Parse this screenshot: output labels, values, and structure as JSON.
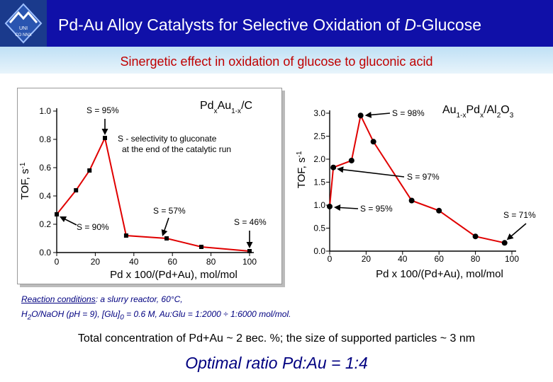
{
  "header": {
    "title": "Pd-Au Alloy Catalysts for Selective Oxidation of D-Glucose",
    "logo_text": [
      "UNI",
      "CO NNX"
    ],
    "colors": {
      "header_bg": "#1010a8",
      "subtitle": "#c00000",
      "series": "#e00000",
      "conditions": "#000080"
    }
  },
  "subtitle": "Sinergetic effect in oxidation of glucose to gluconic acid",
  "chart_data": [
    {
      "type": "line",
      "title": "PdxAu1-x/C",
      "xlabel": "Pd x 100/(Pd+Au), mol/mol",
      "ylabel": "TOF, s-1",
      "xlim": [
        0,
        100
      ],
      "ylim": [
        0,
        1.0
      ],
      "xticks": [
        "0",
        "20",
        "40",
        "60",
        "80",
        "100"
      ],
      "yticks": [
        "0.0",
        "0.2",
        "0.4",
        "0.6",
        "0.8",
        "1.0"
      ],
      "grid": false,
      "x": [
        0,
        10,
        17,
        25,
        36,
        57,
        75,
        100
      ],
      "y": [
        0.27,
        0.44,
        0.58,
        0.81,
        0.12,
        0.1,
        0.04,
        0.01
      ],
      "annotations": [
        "S = 95%",
        "S - selectivity to gluconate",
        "at the end of the catalytic run",
        "S = 90%",
        "S = 57%",
        "S = 46%"
      ]
    },
    {
      "type": "line",
      "title": "Au1-xPdx/Al2O3",
      "xlabel": "Pd x 100/(Pd+Au), mol/mol",
      "ylabel": "TOF, s-1",
      "xlim": [
        0,
        100
      ],
      "ylim": [
        0,
        3.0
      ],
      "xticks": [
        "0",
        "20",
        "40",
        "60",
        "80",
        "100"
      ],
      "yticks": [
        "0.0",
        "0.5",
        "1.0",
        "1.5",
        "2.0",
        "2.5",
        "3.0"
      ],
      "grid": false,
      "x": [
        0,
        2,
        12,
        17,
        24,
        45,
        60,
        80,
        96
      ],
      "y": [
        0.97,
        1.82,
        1.97,
        2.95,
        2.38,
        1.1,
        0.88,
        0.32,
        0.18
      ],
      "annotations": [
        "S = 98%",
        "S = 97%",
        "S = 95%",
        "S = 71%"
      ]
    }
  ],
  "conditions": {
    "line1_label": "Reaction conditions",
    "line1_rest": ": a slurry reactor, 60°C,",
    "line2": "H2O/NaOH (pH = 9), [Glu]0 = 0.6 M, Au:Glu = 1:2000 ÷ 1:6000 mol/mol."
  },
  "note": "Total concentration of Pd+Au ~ 2 вес. %; the size of supported particles ~ 3 nm",
  "optimal": "Optimal ratio Pd:Au = 1:4"
}
